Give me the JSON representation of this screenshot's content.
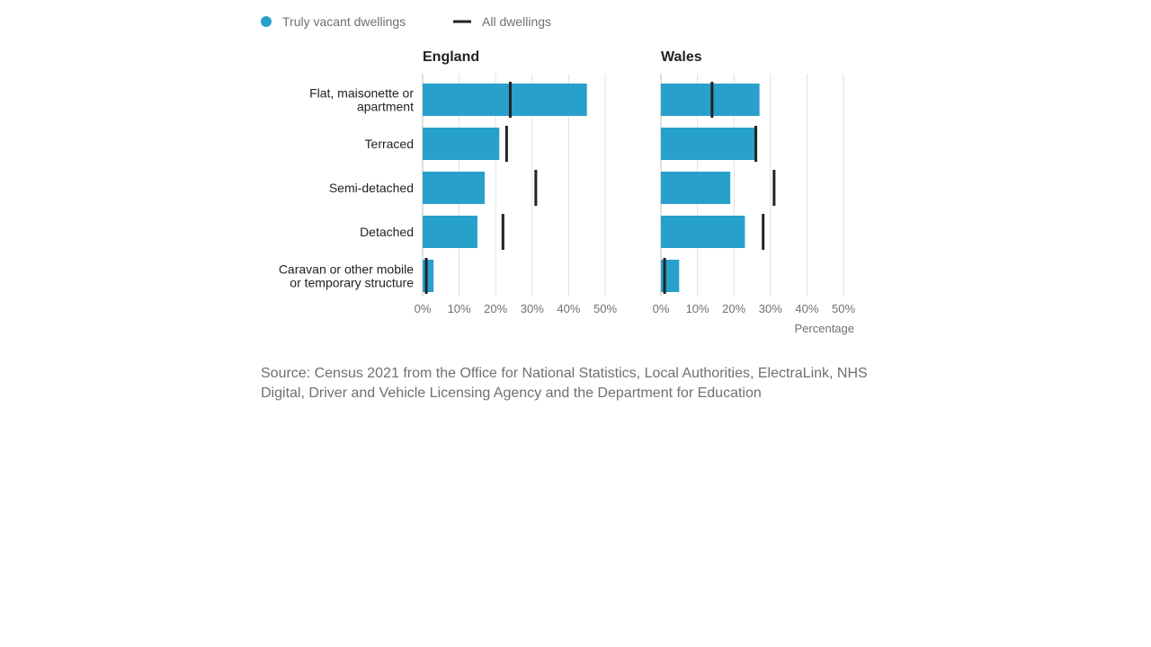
{
  "chart_data": {
    "type": "bar",
    "legend": {
      "position": "top-left",
      "items": [
        {
          "label": "Truly vacant dwellings",
          "kind": "circle",
          "color": "#27a0cc"
        },
        {
          "label": "All dwellings",
          "kind": "line",
          "color": "#222222"
        }
      ]
    },
    "categories": [
      [
        "Flat, maisonette or",
        "apartment"
      ],
      [
        "Terraced"
      ],
      [
        "Semi-detached"
      ],
      [
        "Detached"
      ],
      [
        "Caravan or other mobile",
        "or temporary structure"
      ]
    ],
    "x_ticks": [
      "0%",
      "10%",
      "20%",
      "30%",
      "40%",
      "50%"
    ],
    "xlim": [
      0,
      50
    ],
    "xlabel": "Percentage",
    "grid": true,
    "panels": [
      {
        "title": "England",
        "series": [
          {
            "name": "Truly vacant dwellings",
            "values": [
              45,
              21,
              17,
              15,
              3
            ]
          },
          {
            "name": "All dwellings",
            "values": [
              24,
              23,
              31,
              22,
              1
            ]
          }
        ]
      },
      {
        "title": "Wales",
        "series": [
          {
            "name": "Truly vacant dwellings",
            "values": [
              27,
              26,
              19,
              23,
              5
            ]
          },
          {
            "name": "All dwellings",
            "values": [
              14,
              26,
              31,
              28,
              1
            ]
          }
        ]
      }
    ]
  },
  "source": {
    "text": "Source: Census 2021 from the Office for National Statistics, Local Authorities, ElectraLink, NHS Digital, Driver and Vehicle Licensing Agency and the Department for Education"
  }
}
